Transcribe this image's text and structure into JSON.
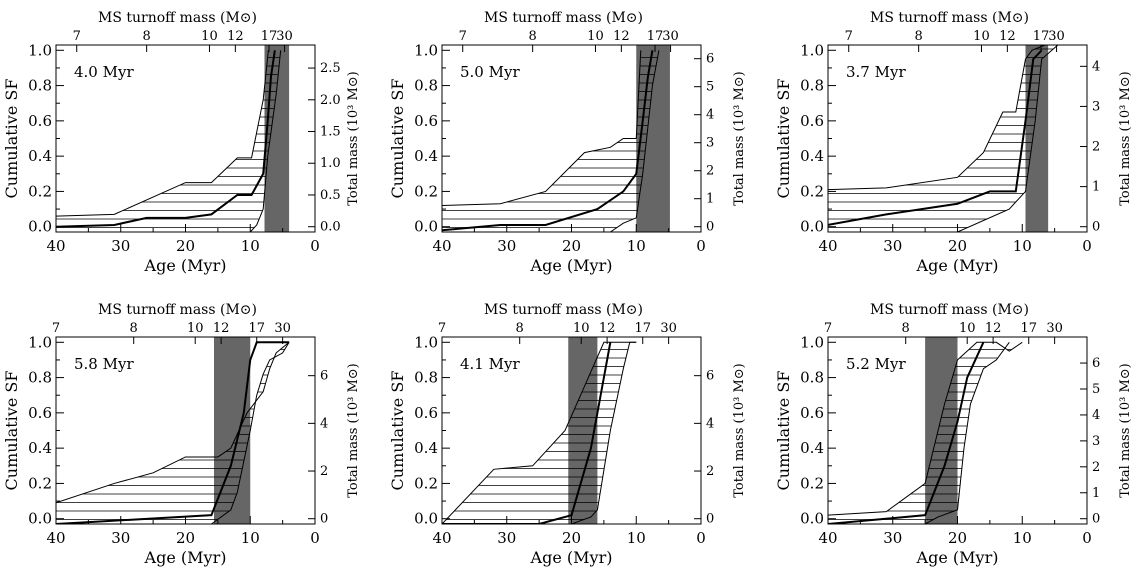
{
  "chart_data": [
    {
      "type": "line",
      "annotation": "4.0 Myr",
      "xlabel": "Age (Myr)",
      "ylabel": "Cumulative SF",
      "top_label": "MS turnoff mass (M⊙)",
      "right_label": "Total mass (10³ M⊙)",
      "xlim": [
        40,
        0
      ],
      "ylim": [
        -0.03,
        1.03
      ],
      "x_ticks": [
        "40",
        "30",
        "20",
        "10",
        "0"
      ],
      "y_ticks": [
        "0.0",
        "0.2",
        "0.4",
        "0.6",
        "0.8",
        "1.0"
      ],
      "top_ticks": [
        "7",
        "8",
        "10",
        "12",
        "17",
        "30"
      ],
      "top_tick_ages": [
        36.8,
        26.0,
        16.3,
        12.3,
        7.1,
        4.7
      ],
      "right_ticks": [
        "0.0",
        "0.5",
        "1.0",
        "1.5",
        "2.0",
        "2.5"
      ],
      "right_max": 2.78,
      "shade": [
        7.8,
        4.0
      ],
      "median": [
        [
          40,
          0
        ],
        [
          31,
          0.01
        ],
        [
          26,
          0.05
        ],
        [
          20,
          0.05
        ],
        [
          16,
          0.07
        ],
        [
          12,
          0.18
        ],
        [
          9.8,
          0.18
        ],
        [
          8.0,
          0.3
        ],
        [
          7.3,
          0.6
        ],
        [
          6.8,
          0.85
        ],
        [
          6.2,
          1.0
        ]
      ],
      "upper": [
        [
          40,
          0.06
        ],
        [
          31,
          0.07
        ],
        [
          20,
          0.25
        ],
        [
          16,
          0.25
        ],
        [
          12,
          0.39
        ],
        [
          9.8,
          0.39
        ],
        [
          8.0,
          0.72
        ],
        [
          7.2,
          1.0
        ]
      ],
      "lower": [
        [
          40,
          -0.03
        ],
        [
          10,
          -0.03
        ],
        [
          9,
          0.01
        ],
        [
          8.0,
          0.1
        ],
        [
          7.3,
          0.4
        ],
        [
          6.0,
          0.75
        ],
        [
          5.3,
          1.0
        ]
      ]
    },
    {
      "type": "line",
      "annotation": "5.0 Myr",
      "xlabel": "Age (Myr)",
      "ylabel": "Cumulative SF",
      "top_label": "MS turnoff mass (M⊙)",
      "right_label": "Total mass (10³ M⊙)",
      "xlim": [
        40,
        0
      ],
      "ylim": [
        -0.03,
        1.03
      ],
      "x_ticks": [
        "40",
        "30",
        "20",
        "10",
        "0"
      ],
      "y_ticks": [
        "0.0",
        "0.2",
        "0.4",
        "0.6",
        "0.8",
        "1.0"
      ],
      "top_ticks": [
        "7",
        "8",
        "10",
        "12",
        "17",
        "30"
      ],
      "top_tick_ages": [
        36.8,
        26.0,
        16.3,
        12.3,
        7.1,
        4.7
      ],
      "right_ticks": [
        "0",
        "1",
        "2",
        "3",
        "4",
        "5",
        "6"
      ],
      "right_max": 6.3,
      "shade": [
        10,
        4.8
      ],
      "median": [
        [
          40,
          -0.02
        ],
        [
          31,
          0.01
        ],
        [
          24,
          0.01
        ],
        [
          16,
          0.1
        ],
        [
          12,
          0.2
        ],
        [
          10,
          0.3
        ],
        [
          9,
          0.6
        ],
        [
          8.2,
          0.85
        ],
        [
          7.5,
          1.0
        ]
      ],
      "upper": [
        [
          40,
          0.12
        ],
        [
          31,
          0.13
        ],
        [
          24,
          0.2
        ],
        [
          18,
          0.42
        ],
        [
          14,
          0.45
        ],
        [
          12,
          0.5
        ],
        [
          10,
          0.5
        ],
        [
          9.3,
          1.0
        ]
      ],
      "lower": [
        [
          40,
          -0.03
        ],
        [
          14,
          -0.03
        ],
        [
          12,
          0.02
        ],
        [
          10,
          0.05
        ],
        [
          9,
          0.3
        ],
        [
          7.5,
          0.8
        ],
        [
          6.5,
          1.0
        ]
      ]
    },
    {
      "type": "line",
      "annotation": "3.7 Myr",
      "xlabel": "Age (Myr)",
      "ylabel": "Cumulative SF",
      "top_label": "MS turnoff mass (M⊙)",
      "right_label": "Total mass (10³ M⊙)",
      "xlim": [
        40,
        0
      ],
      "ylim": [
        -0.03,
        1.03
      ],
      "x_ticks": [
        "40",
        "30",
        "20",
        "10",
        "0"
      ],
      "y_ticks": [
        "0.0",
        "0.2",
        "0.4",
        "0.6",
        "0.8",
        "1.0"
      ],
      "top_ticks": [
        "7",
        "8",
        "10",
        "12",
        "17",
        "30"
      ],
      "top_tick_ages": [
        36.8,
        26.0,
        16.3,
        12.3,
        7.1,
        4.7
      ],
      "right_ticks": [
        "0",
        "1",
        "2",
        "3",
        "4"
      ],
      "right_max": 4.4,
      "shade": [
        9.5,
        6.0
      ],
      "median": [
        [
          40,
          0.01
        ],
        [
          31,
          0.07
        ],
        [
          20,
          0.13
        ],
        [
          15,
          0.2
        ],
        [
          11,
          0.2
        ],
        [
          9.5,
          0.6
        ],
        [
          8.3,
          0.95
        ],
        [
          7.0,
          1.0
        ]
      ],
      "upper": [
        [
          40,
          0.21
        ],
        [
          31,
          0.22
        ],
        [
          20,
          0.28
        ],
        [
          16,
          0.42
        ],
        [
          13,
          0.65
        ],
        [
          11,
          0.65
        ],
        [
          9.5,
          0.95
        ],
        [
          8.5,
          1.0
        ],
        [
          6.5,
          1.03
        ]
      ],
      "lower": [
        [
          40,
          -0.03
        ],
        [
          20,
          -0.03
        ],
        [
          12,
          0.1
        ],
        [
          9.5,
          0.2
        ],
        [
          8.0,
          0.6
        ],
        [
          7.0,
          0.95
        ],
        [
          4.5,
          1.03
        ]
      ]
    },
    {
      "type": "line",
      "annotation": "5.8 Myr",
      "xlabel": "Age (Myr)",
      "ylabel": "Cumulative SF",
      "top_label": "MS turnoff mass (M⊙)",
      "right_label": "Total mass (10³ M⊙)",
      "xlim": [
        40,
        0
      ],
      "ylim": [
        -0.03,
        1.03
      ],
      "x_ticks": [
        "40",
        "30",
        "20",
        "10",
        "0"
      ],
      "y_ticks": [
        "0.0",
        "0.2",
        "0.4",
        "0.6",
        "0.8",
        "1.0"
      ],
      "top_ticks": [
        "7",
        "8",
        "10",
        "12",
        "17",
        "30"
      ],
      "top_tick_ages": [
        40.0,
        28.0,
        18.5,
        14.5,
        9.0,
        5.0
      ],
      "right_ticks": [
        "0",
        "2",
        "4",
        "6"
      ],
      "right_max": 7.4,
      "shade": [
        15.6,
        10.0
      ],
      "median": [
        [
          40,
          -0.03
        ],
        [
          16,
          0.02
        ],
        [
          13,
          0.3
        ],
        [
          11,
          0.6
        ],
        [
          10,
          0.9
        ],
        [
          9,
          1.0
        ],
        [
          4,
          1.0
        ]
      ],
      "upper": [
        [
          40,
          0.09
        ],
        [
          31,
          0.2
        ],
        [
          25,
          0.26
        ],
        [
          20,
          0.35
        ],
        [
          15,
          0.35
        ],
        [
          13,
          0.4
        ],
        [
          10.5,
          0.6
        ],
        [
          8,
          0.72
        ],
        [
          7,
          0.85
        ],
        [
          6,
          0.94
        ],
        [
          4,
          1.0
        ]
      ],
      "lower": [
        [
          40,
          -0.03
        ],
        [
          16,
          -0.03
        ],
        [
          13,
          0.05
        ],
        [
          12,
          0.15
        ],
        [
          10,
          0.5
        ],
        [
          9,
          0.7
        ],
        [
          8,
          0.82
        ],
        [
          7,
          0.9
        ],
        [
          5,
          0.94
        ],
        [
          4,
          1.0
        ]
      ]
    },
    {
      "type": "line",
      "annotation": "4.1 Myr",
      "xlabel": "Age (Myr)",
      "ylabel": "Cumulative SF",
      "top_label": "MS turnoff mass (M⊙)",
      "right_label": "Total mass (10³ M⊙)",
      "xlim": [
        40,
        0
      ],
      "ylim": [
        -0.03,
        1.03
      ],
      "x_ticks": [
        "40",
        "30",
        "20",
        "10",
        "0"
      ],
      "y_ticks": [
        "0.0",
        "0.2",
        "0.4",
        "0.6",
        "0.8",
        "1.0"
      ],
      "top_ticks": [
        "7",
        "8",
        "10",
        "12",
        "17",
        "30"
      ],
      "top_tick_ages": [
        40.0,
        28.0,
        18.5,
        14.5,
        9.0,
        5.0
      ],
      "right_ticks": [
        "0",
        "2",
        "4",
        "6"
      ],
      "right_max": 7.4,
      "shade": [
        20.5,
        16.0
      ],
      "median": [
        [
          40,
          -0.03
        ],
        [
          25,
          -0.03
        ],
        [
          20,
          0.02
        ],
        [
          17,
          0.4
        ],
        [
          15.5,
          0.7
        ],
        [
          14,
          1.0
        ]
      ],
      "upper": [
        [
          40,
          -0.03
        ],
        [
          32,
          0.28
        ],
        [
          26,
          0.3
        ],
        [
          21,
          0.5
        ],
        [
          18,
          0.75
        ],
        [
          15,
          1.0
        ],
        [
          10,
          1.0
        ]
      ],
      "lower": [
        [
          40,
          -0.03
        ],
        [
          20,
          -0.03
        ],
        [
          17,
          0.01
        ],
        [
          16,
          0.05
        ],
        [
          14,
          0.5
        ],
        [
          12,
          0.85
        ],
        [
          11,
          1.0
        ],
        [
          10,
          1.0
        ]
      ]
    },
    {
      "type": "line",
      "annotation": "5.2 Myr",
      "xlabel": "Age (Myr)",
      "ylabel": "Cumulative SF",
      "top_label": "MS turnoff mass (M⊙)",
      "right_label": "Total mass (10³ M⊙)",
      "xlim": [
        40,
        0
      ],
      "ylim": [
        -0.03,
        1.03
      ],
      "x_ticks": [
        "40",
        "30",
        "20",
        "10",
        "0"
      ],
      "y_ticks": [
        "0.0",
        "0.2",
        "0.4",
        "0.6",
        "0.8",
        "1.0"
      ],
      "top_ticks": [
        "7",
        "8",
        "10",
        "12",
        "17",
        "30"
      ],
      "top_tick_ages": [
        40.0,
        28.0,
        18.5,
        14.5,
        9.0,
        5.0
      ],
      "right_ticks": [
        "0",
        "1",
        "2",
        "3",
        "4",
        "5",
        "6"
      ],
      "right_max": 6.8,
      "shade": [
        25.0,
        20.0
      ],
      "median": [
        [
          40,
          -0.03
        ],
        [
          25,
          0.02
        ],
        [
          22,
          0.3
        ],
        [
          20,
          0.55
        ],
        [
          18.5,
          0.8
        ],
        [
          16,
          1.0
        ]
      ],
      "upper": [
        [
          40,
          0.02
        ],
        [
          31,
          0.04
        ],
        [
          25,
          0.2
        ],
        [
          22,
          0.65
        ],
        [
          20,
          0.9
        ],
        [
          17,
          1.0
        ],
        [
          14,
          1.0
        ],
        [
          12,
          0.95
        ],
        [
          10,
          1.0
        ]
      ],
      "lower": [
        [
          40,
          -0.03
        ],
        [
          25,
          -0.03
        ],
        [
          23,
          0.01
        ],
        [
          20,
          0.05
        ],
        [
          19,
          0.4
        ],
        [
          18,
          0.65
        ],
        [
          16,
          0.85
        ],
        [
          14,
          0.9
        ],
        [
          12,
          1.0
        ]
      ]
    }
  ]
}
